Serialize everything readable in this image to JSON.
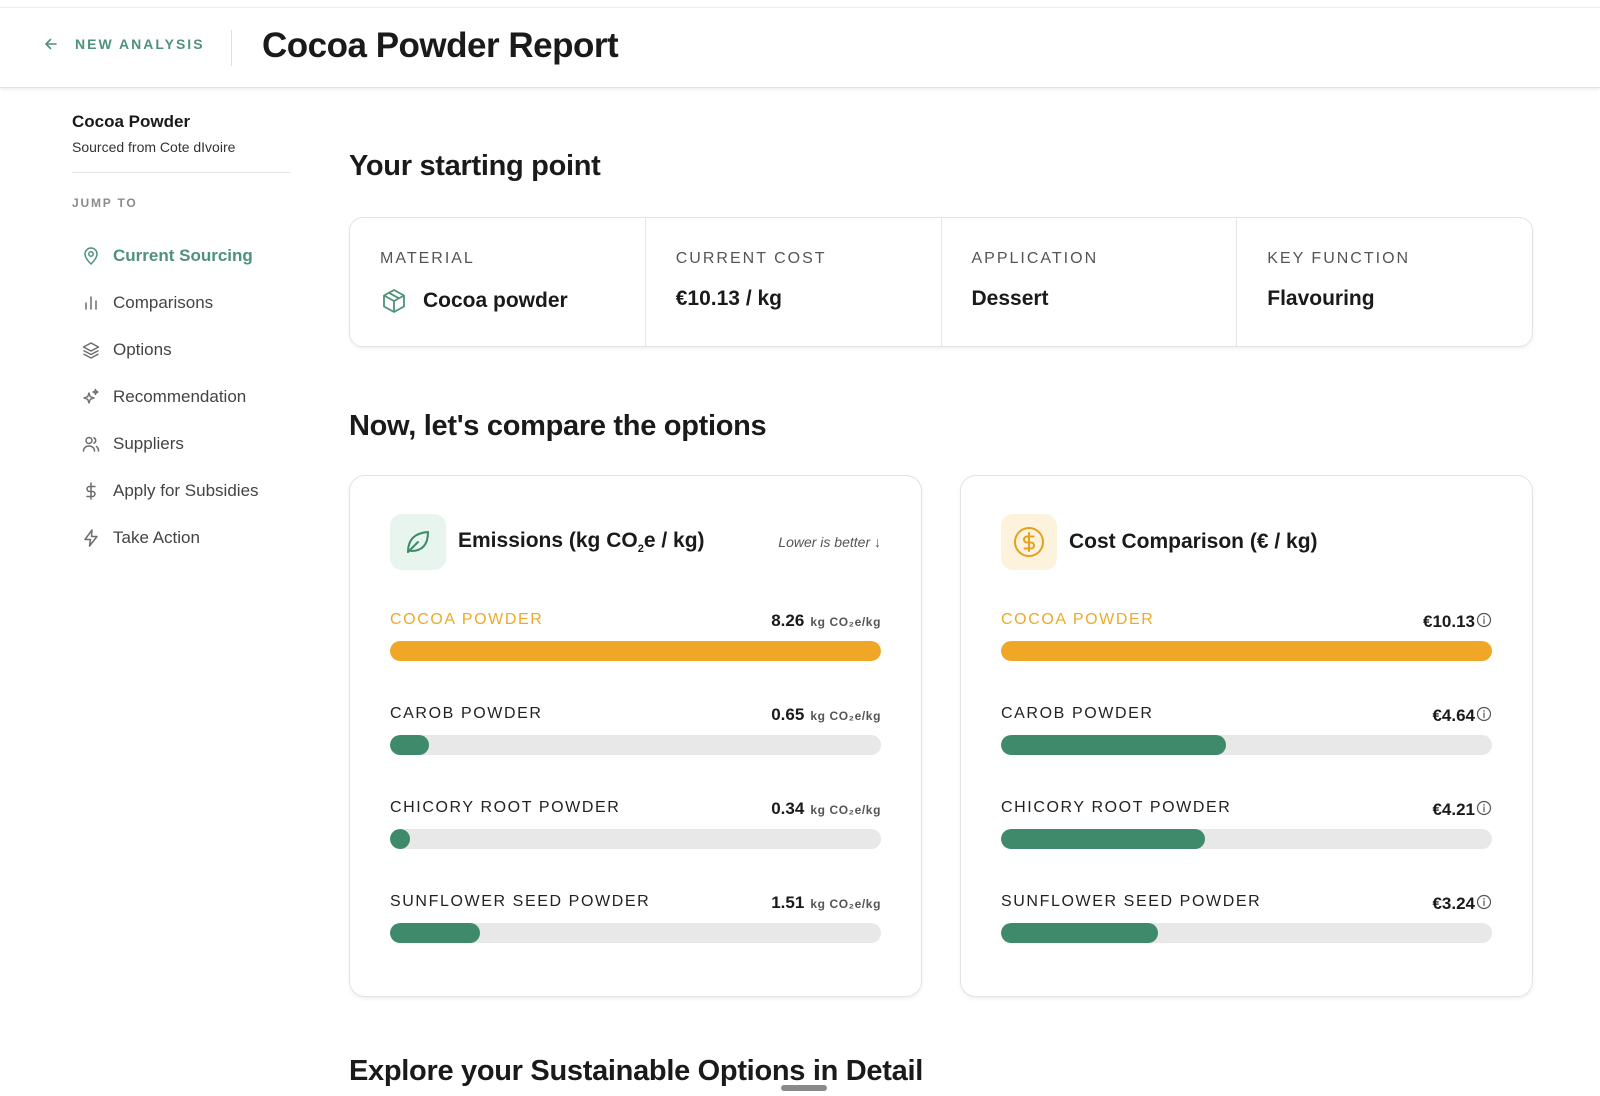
{
  "header": {
    "back_label": "NEW ANALYSIS",
    "title": "Cocoa Powder Report"
  },
  "sidebar": {
    "product_name": "Cocoa Powder",
    "product_sub": "Sourced from Cote dIvoire",
    "jump_label": "JUMP TO",
    "items": [
      {
        "label": "Current Sourcing",
        "icon": "map-pin-icon",
        "active": true
      },
      {
        "label": "Comparisons",
        "icon": "bar-chart-icon",
        "active": false
      },
      {
        "label": "Options",
        "icon": "layers-icon",
        "active": false
      },
      {
        "label": "Recommendation",
        "icon": "sparkles-icon",
        "active": false
      },
      {
        "label": "Suppliers",
        "icon": "users-icon",
        "active": false
      },
      {
        "label": "Apply for Subsidies",
        "icon": "dollar-icon",
        "active": false
      },
      {
        "label": "Take Action",
        "icon": "lightning-icon",
        "active": false
      }
    ]
  },
  "main": {
    "starting_title": "Your starting point",
    "starting": [
      {
        "key": "MATERIAL",
        "value": "Cocoa powder"
      },
      {
        "key": "CURRENT COST",
        "value": "€10.13 / kg"
      },
      {
        "key": "APPLICATION",
        "value": "Dessert"
      },
      {
        "key": "KEY FUNCTION",
        "value": "Flavouring"
      }
    ],
    "compare_title": "Now, let's compare the options",
    "emissions": {
      "title_pre": "Emissions (kg CO",
      "title_sub": "2",
      "title_post": "e / kg)",
      "hint": "Lower is better ↓",
      "unit": "kg CO₂e/kg",
      "rows": [
        {
          "name": "COCOA POWDER",
          "value": "8.26",
          "fraction": 1.0
        },
        {
          "name": "CAROB POWDER",
          "value": "0.65",
          "fraction": 0.079
        },
        {
          "name": "CHICORY ROOT POWDER",
          "value": "0.34",
          "fraction": 0.041
        },
        {
          "name": "SUNFLOWER SEED POWDER",
          "value": "1.51",
          "fraction": 0.183
        }
      ]
    },
    "cost": {
      "title": "Cost Comparison (€ / kg)",
      "rows": [
        {
          "name": "COCOA POWDER",
          "value": "€10.13",
          "fraction": 1.0
        },
        {
          "name": "CAROB POWDER",
          "value": "€4.64",
          "fraction": 0.458
        },
        {
          "name": "CHICORY ROOT POWDER",
          "value": "€4.21",
          "fraction": 0.416
        },
        {
          "name": "SUNFLOWER SEED POWDER",
          "value": "€3.24",
          "fraction": 0.32
        }
      ]
    },
    "explore_title": "Explore your Sustainable Options in Detail"
  },
  "colors": {
    "accent": "#4e9277",
    "bar_green": "#3e8a6a",
    "bar_amber": "#f0a727",
    "track": "#e8e8e8"
  }
}
